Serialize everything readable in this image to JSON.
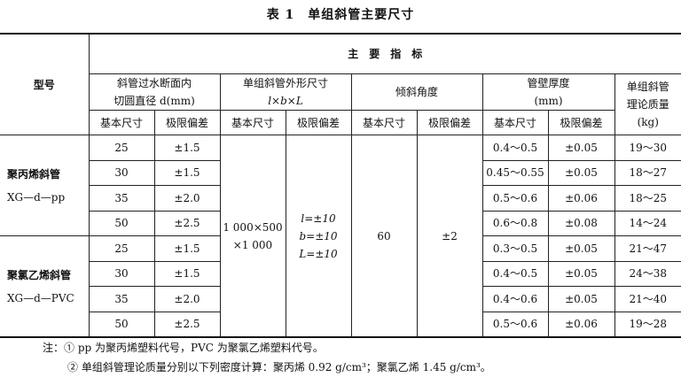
{
  "title": "表 1　单组斜管主要尺寸",
  "header": {
    "model": "型号",
    "main": "主　要　指　标",
    "d_line1": "斜管过水断面内",
    "d_line2": "切圆直径 d(mm)",
    "size_line1": "单组斜管外形尺寸",
    "size_line2": "l×b×L",
    "angle": "倾斜角度",
    "wall_line1": "管壁厚度",
    "wall_line2": "(mm)",
    "mass_line1": "单组斜管",
    "mass_line2": "理论质量",
    "mass_line3": "(kg)",
    "basic": "基本尺寸",
    "tol": "极限偏差"
  },
  "groups": [
    {
      "name": "聚丙烯斜管",
      "code": "XG—d—pp"
    },
    {
      "name": "聚氯乙烯斜管",
      "code": "XG—d—PVC"
    }
  ],
  "shared": {
    "size_basic_1": "1 000×500",
    "size_basic_2": "×1 000",
    "size_tol_1": "l=±10",
    "size_tol_2": "b=±10",
    "size_tol_3": "L=±10",
    "angle_basic": "60",
    "angle_tol": "±2"
  },
  "rows": [
    {
      "d": "25",
      "d_tol": "±1.5",
      "wall": "0.4～0.5",
      "wall_tol": "±0.05",
      "mass": "19～30"
    },
    {
      "d": "30",
      "d_tol": "±1.5",
      "wall": "0.45～0.55",
      "wall_tol": "±0.05",
      "mass": "18～27"
    },
    {
      "d": "35",
      "d_tol": "±2.0",
      "wall": "0.5～0.6",
      "wall_tol": "±0.06",
      "mass": "18～25"
    },
    {
      "d": "50",
      "d_tol": "±2.5",
      "wall": "0.6～0.8",
      "wall_tol": "±0.08",
      "mass": "14～24"
    },
    {
      "d": "25",
      "d_tol": "±1.5",
      "wall": "0.3～0.5",
      "wall_tol": "±0.05",
      "mass": "21～47"
    },
    {
      "d": "30",
      "d_tol": "±1.5",
      "wall": "0.4～0.5",
      "wall_tol": "±0.05",
      "mass": "24～38"
    },
    {
      "d": "35",
      "d_tol": "±2.0",
      "wall": "0.4～0.6",
      "wall_tol": "±0.05",
      "mass": "21～40"
    },
    {
      "d": "50",
      "d_tol": "±2.5",
      "wall": "0.5～0.6",
      "wall_tol": "±0.06",
      "mass": "19～28"
    }
  ],
  "notes": {
    "n1": "注：① pp 为聚丙烯塑料代号，PVC 为聚氯乙烯塑料代号。",
    "n2": "② 单组斜管理论质量分别以下列密度计算：聚丙烯 0.92 g/cm³；聚氯乙烯 1.45 g/cm³。"
  }
}
